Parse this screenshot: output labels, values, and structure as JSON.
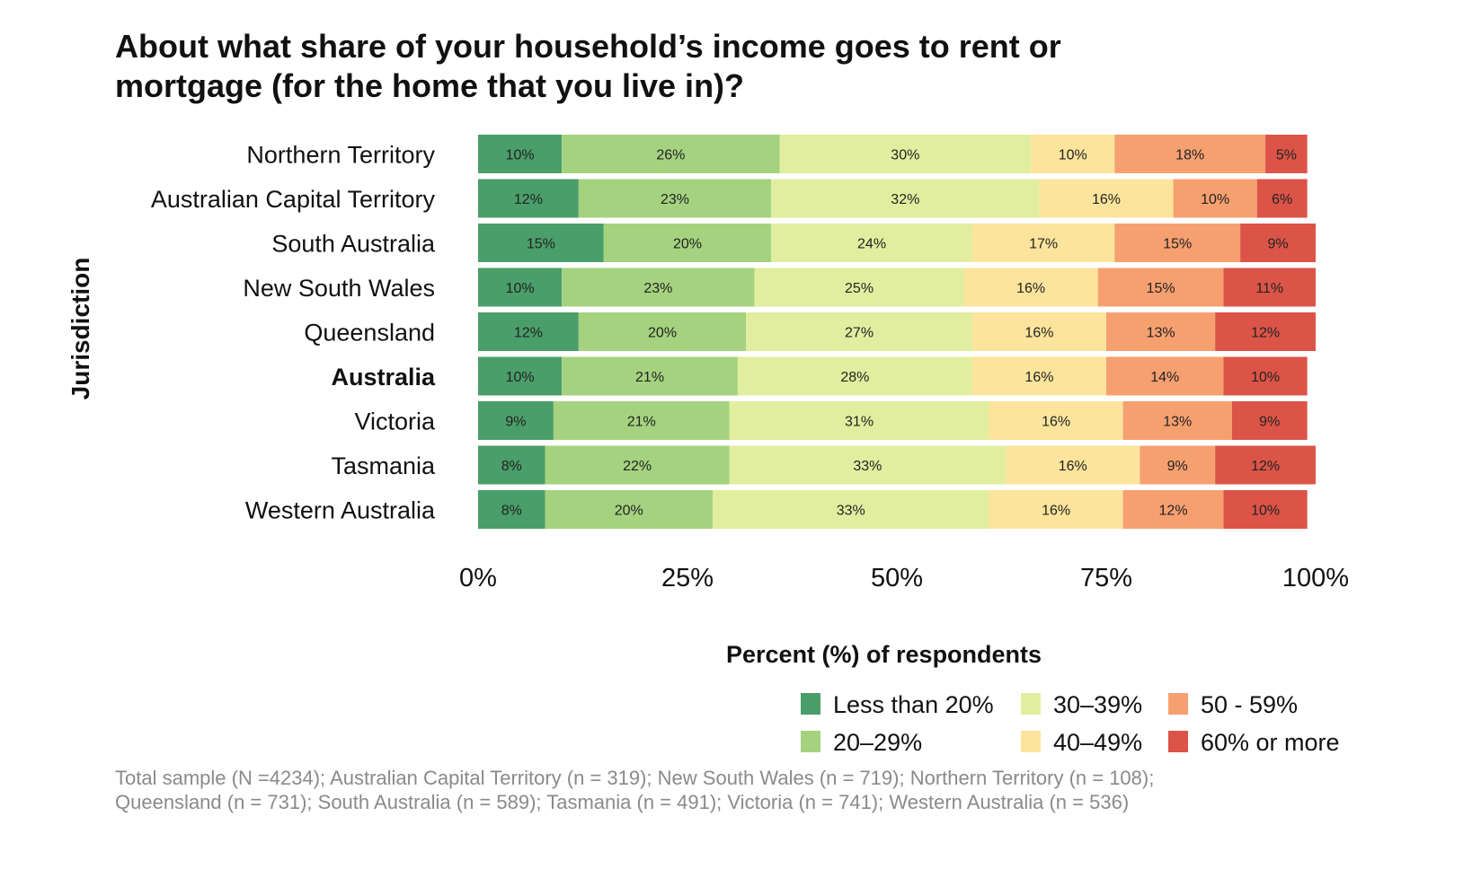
{
  "chart_data": {
    "type": "bar",
    "orientation": "horizontal",
    "stacked": true,
    "title": "About what share of your household’s income goes to rent or mortgage (for the home that you live in)?",
    "title_lines": [
      "About what share of your household’s income goes to rent or",
      "mortgage (for the home that you live in)?"
    ],
    "xlabel": "",
    "ylabel": "Jurisdiction",
    "xlim": [
      0,
      100
    ],
    "x_ticks": [
      0,
      25,
      50,
      75,
      100
    ],
    "x_tick_labels": [
      "0%",
      "25%",
      "50%",
      "75%",
      "100%"
    ],
    "grid": false,
    "categories": [
      "Northern Territory",
      "Australian Capital Territory",
      "South Australia",
      "New South Wales",
      "Queensland",
      "Australia",
      "Victoria",
      "Tasmania",
      "Western Australia"
    ],
    "emphasized_category": "Australia",
    "series": [
      {
        "name": "Less than 20%",
        "color": "#4a9e6a",
        "values": [
          10,
          12,
          15,
          10,
          12,
          10,
          9,
          8,
          8
        ]
      },
      {
        "name": "20–29%",
        "color": "#a5d27f",
        "values": [
          26,
          23,
          20,
          23,
          20,
          21,
          21,
          22,
          20
        ]
      },
      {
        "name": "30–39%",
        "color": "#e1ee9f",
        "values": [
          30,
          32,
          24,
          25,
          27,
          28,
          31,
          33,
          33
        ]
      },
      {
        "name": "40–49%",
        "color": "#fde49c",
        "values": [
          10,
          16,
          17,
          16,
          16,
          16,
          16,
          16,
          16
        ]
      },
      {
        "name": "50 - 59%",
        "color": "#f6a070",
        "values": [
          18,
          10,
          15,
          15,
          13,
          14,
          13,
          9,
          12
        ]
      },
      {
        "name": "60% or more",
        "color": "#dc5448",
        "values": [
          5,
          6,
          9,
          11,
          12,
          10,
          9,
          12,
          10
        ]
      }
    ],
    "legend": {
      "title": "Percent (%) of respondents",
      "placement": "bottom-right",
      "order": [
        0,
        2,
        4,
        1,
        3,
        5
      ]
    },
    "caption_lines": [
      "Total sample (N =4234); Australian Capital Territory (n = 319); New South Wales (n = 719); Northern Territory (n = 108);",
      "Queensland (n = 731); South Australia (n = 589); Tasmania (n = 491); Victoria (n = 741); Western Australia (n = 536)"
    ]
  }
}
